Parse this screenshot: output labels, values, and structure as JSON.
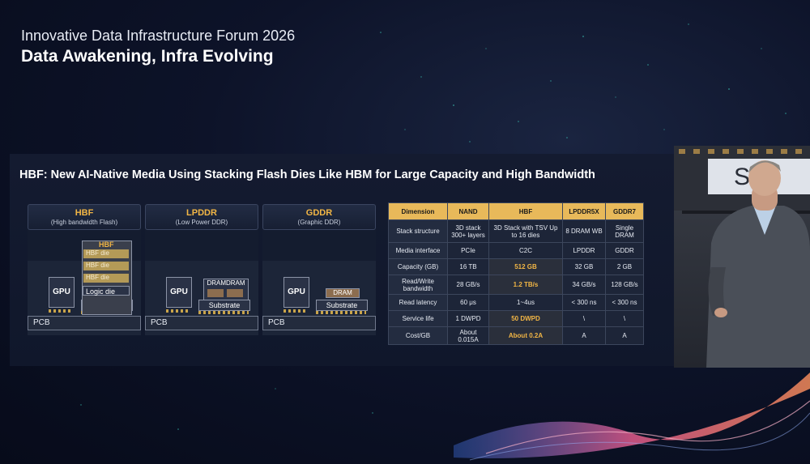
{
  "header": {
    "line1": "Innovative Data Infrastructure Forum 2026",
    "line2": "Data Awakening, Infra Evolving"
  },
  "slide": {
    "title": "HBF: New AI-Native Media Using Stacking Flash Dies Like HBM for Large Capacity and High Bandwidth",
    "panels": [
      {
        "title": "HBF",
        "subtitle": "(High bandwidth Flash)"
      },
      {
        "title": "LPDDR",
        "subtitle": "(Low Power DDR)"
      },
      {
        "title": "GDDR",
        "subtitle": "(Graphic DDR)"
      }
    ],
    "diagram": {
      "gpu": "GPU",
      "substrate": "Substrate",
      "pcb": "PCB",
      "hbf_label": "HBF",
      "hbf_die": "HBF die",
      "logic_die": "Logic die",
      "dramdram": "DRAMDRAM",
      "dram": "DRAM"
    },
    "table": {
      "headers": [
        "Dimension",
        "NAND",
        "HBF",
        "LPDDR5X",
        "GDDR7"
      ],
      "rows": [
        [
          "Stack structure",
          "3D stack 300+ layers",
          "3D Stack with TSV Up to 16 dies",
          "8 DRAM WB",
          "Single DRAM"
        ],
        [
          "Media interface",
          "PCIe",
          "C2C",
          "LPDDR",
          "GDDR"
        ],
        [
          "Capacity (GB)",
          "16 TB",
          "512 GB",
          "32 GB",
          "2 GB"
        ],
        [
          "Read/Write bandwidth",
          "28 GB/s",
          "1.2 TB/s",
          "34 GB/s",
          "128 GB/s"
        ],
        [
          "Read latency",
          "60 μs",
          "1~4us",
          "< 300 ns",
          "< 300 ns"
        ],
        [
          "Service life",
          "1 DWPD",
          "50 DWPD",
          "\\",
          "\\"
        ],
        [
          "Cost/GB",
          "About 0.015A",
          "About 0.2A",
          "A",
          "A"
        ]
      ]
    }
  },
  "camera": {
    "screen_text": "Su"
  }
}
